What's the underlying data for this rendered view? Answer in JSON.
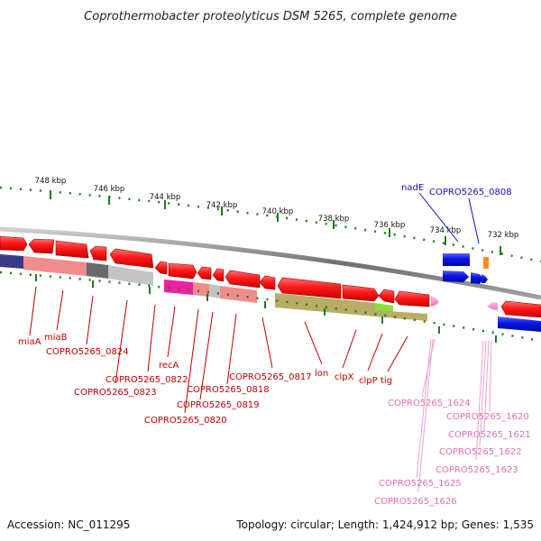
{
  "title": "Coprothermobacter proteolyticus DSM 5265, complete genome",
  "footer": {
    "accession": "Accession: NC_011295",
    "summary": "Topology: circular; Length: 1,424,912 bp; Genes: 1,535"
  },
  "colors": {
    "gene_red": "#ff1a1a",
    "gene_blue": "#0a14e6",
    "gene_pink": "#f58ad0",
    "label_red": "#c00000",
    "label_blue": "#1010c0",
    "label_pink": "#e070b0",
    "tick_green": "#1f7a1f"
  },
  "kbp_ticks": [
    {
      "label": "748 kbp"
    },
    {
      "label": "746 kbp"
    },
    {
      "label": "744 kbp"
    },
    {
      "label": "742 kbp"
    },
    {
      "label": "740 kbp"
    },
    {
      "label": "738 kbp"
    },
    {
      "label": "736 kbp"
    },
    {
      "label": "734 kbp"
    },
    {
      "label": "732 kbp"
    }
  ],
  "labels_red": [
    {
      "text": "miaA"
    },
    {
      "text": "miaB"
    },
    {
      "text": "COPRO5265_0824"
    },
    {
      "text": "recA"
    },
    {
      "text": "COPRO5265_0822"
    },
    {
      "text": "COPRO5265_0823"
    },
    {
      "text": "COPRO5265_0817"
    },
    {
      "text": "COPRO5265_0818"
    },
    {
      "text": "COPRO5265_0819"
    },
    {
      "text": "COPRO5265_0820"
    },
    {
      "text": "lon"
    },
    {
      "text": "clpX"
    },
    {
      "text": "clpP"
    },
    {
      "text": "tig"
    }
  ],
  "labels_blue": [
    {
      "text": "nadE"
    },
    {
      "text": "COPRO5265_0808"
    }
  ],
  "labels_pink": [
    {
      "text": "COPRO5265_1624"
    },
    {
      "text": "COPRO5265_1620"
    },
    {
      "text": "COPRO5265_1621"
    },
    {
      "text": "COPRO5265_1622"
    },
    {
      "text": "COPRO5265_1623"
    },
    {
      "text": "COPRO5265_1625"
    },
    {
      "text": "COPRO5265_1626"
    }
  ]
}
